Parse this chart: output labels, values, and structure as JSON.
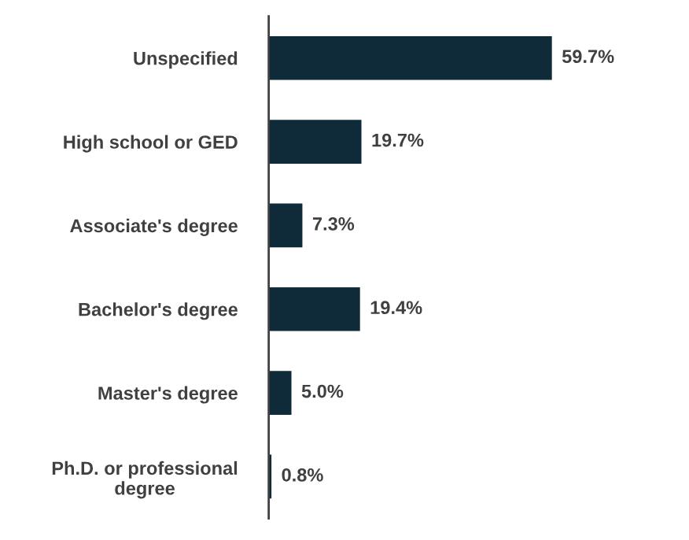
{
  "chart_data": {
    "type": "bar",
    "orientation": "horizontal",
    "categories": [
      "Unspecified",
      "High school or GED",
      "Associate's degree",
      "Bachelor's degree",
      "Master's degree",
      "Ph.D. or professional degree"
    ],
    "values": [
      59.7,
      19.7,
      7.3,
      19.4,
      5.0,
      0.8
    ],
    "value_labels": [
      "59.7%",
      "19.7%",
      "7.3%",
      "19.4%",
      "5.0%",
      "0.8%"
    ],
    "color": "#0f2a38",
    "grid": false,
    "legend": false,
    "tick_labels": "y"
  }
}
